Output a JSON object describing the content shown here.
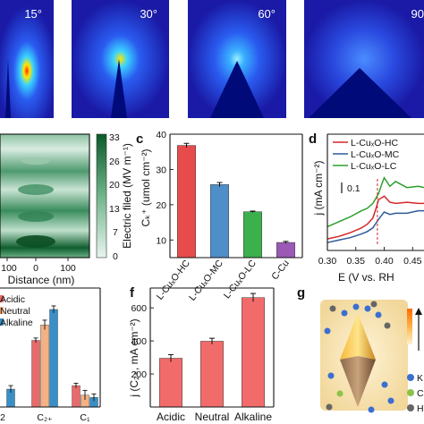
{
  "panel_a": {
    "angles": [
      "15°",
      "30°",
      "60°",
      "90"
    ],
    "colors": {
      "field_bg": "#1a1aa6",
      "tip": "#000a78",
      "hot": "#ffe600"
    }
  },
  "panel_b": {
    "xlabel": "Distance (nm)",
    "xticks": [
      "100",
      "0",
      "100"
    ],
    "colorbar_label": "Electric filed (MV m⁻¹)",
    "colorbar_ticks": [
      "33",
      "26",
      "20",
      "13",
      "7",
      "0"
    ],
    "colors": {
      "high": "#0a5a28",
      "low": "#e8f4ef"
    }
  },
  "panel_c": {
    "label": "c",
    "ylabel": "Cₖ⁺ (umol cm⁻²)",
    "yticks": [
      "10",
      "20",
      "30",
      "40"
    ],
    "ylim": [
      5,
      40
    ]
  },
  "panel_d": {
    "label": "d",
    "legend": [
      "L-CuₓO-HC",
      "L-CuₓO-MC",
      "L-CuₓO-LC"
    ],
    "ylabel": "j (mA cm⁻²)",
    "xlabel": "E (V vs. RH",
    "xticks": [
      "0.30",
      "0.35",
      "0.40",
      "0.45"
    ],
    "scalebar": "0.1",
    "colors": [
      "#d62728",
      "#2e5a99",
      "#2ca02c"
    ]
  },
  "panel_e": {
    "legend": [
      "Acidic",
      "Neutral",
      "Alkaline"
    ],
    "categories": [
      "2",
      "C₂₊",
      "C₁"
    ],
    "colors": [
      "#e86b6b",
      "#f4b183",
      "#3a8fc7"
    ]
  },
  "panel_f": {
    "label": "f",
    "ylabel": "j (C₂₊, mA cm⁻²)",
    "yticks": [
      "200",
      "400",
      "600"
    ],
    "ylim": [
      0,
      720
    ]
  },
  "panel_g": {
    "label": "g",
    "legend_letters": [
      "K",
      "C",
      "H"
    ],
    "colors": [
      "#3b6fd1",
      "#8bc34a",
      "#666666"
    ]
  },
  "chart_data": [
    {
      "type": "bar",
      "panel": "c",
      "categories": [
        "L-CuₓO-HC",
        "L-CuₓO-MC",
        "L-CuₓO-LC",
        "C-Cu"
      ],
      "values": [
        36.8,
        25.7,
        18.0,
        9.3
      ],
      "errors": [
        0.6,
        0.6,
        0.2,
        0.3
      ],
      "colors": [
        "#e84b4b",
        "#4f8fc9",
        "#3cb04c",
        "#9b59b6"
      ],
      "ylabel": "Cₖ⁺ (umol cm⁻²)",
      "ylim": [
        5,
        40
      ]
    },
    {
      "type": "bar",
      "panel": "f",
      "categories": [
        "Acidic",
        "Neutral",
        "Alkaline"
      ],
      "values": [
        295,
        398,
        662
      ],
      "errors": [
        22,
        18,
        25
      ],
      "colors": [
        "#f26b6b",
        "#f26b6b",
        "#f26b6b"
      ],
      "ylabel": "j (C₂₊, mA cm⁻²)",
      "ylim": [
        0,
        720
      ]
    },
    {
      "type": "bar",
      "panel": "e",
      "categories": [
        "2",
        "C₂₊",
        "C₁"
      ],
      "series": [
        {
          "name": "Acidic",
          "values": [
            0.16,
            0.56,
            0.18
          ]
        },
        {
          "name": "Neutral",
          "values": [
            0.0,
            0.69,
            0.1
          ]
        },
        {
          "name": "Alkaline",
          "values": [
            0.15,
            0.82,
            0.08
          ]
        }
      ],
      "errors": [
        0.02,
        0.04,
        0.03
      ],
      "ylim": [
        0,
        1.0
      ]
    },
    {
      "type": "line",
      "panel": "d",
      "xlim": [
        0.3,
        0.47
      ],
      "series": [
        {
          "name": "L-CuₓO-HC",
          "x": [
            0.3,
            0.32,
            0.34,
            0.36,
            0.37,
            0.38,
            0.385,
            0.39,
            0.4,
            0.41,
            0.42,
            0.44,
            0.46,
            0.47
          ],
          "y": [
            0.08,
            0.1,
            0.13,
            0.17,
            0.2,
            0.25,
            0.32,
            0.4,
            0.43,
            0.38,
            0.37,
            0.38,
            0.37,
            0.37
          ]
        },
        {
          "name": "L-CuₓO-MC",
          "x": [
            0.3,
            0.32,
            0.34,
            0.36,
            0.37,
            0.38,
            0.39,
            0.4,
            0.41,
            0.42,
            0.44,
            0.46,
            0.47
          ],
          "y": [
            0.05,
            0.07,
            0.09,
            0.12,
            0.14,
            0.17,
            0.24,
            0.3,
            0.28,
            0.29,
            0.29,
            0.31,
            0.31
          ]
        },
        {
          "name": "L-CuₓO-LC",
          "x": [
            0.3,
            0.32,
            0.34,
            0.36,
            0.37,
            0.38,
            0.39,
            0.395,
            0.4,
            0.41,
            0.42,
            0.44,
            0.46,
            0.47
          ],
          "y": [
            0.18,
            0.22,
            0.26,
            0.31,
            0.33,
            0.37,
            0.45,
            0.52,
            0.58,
            0.51,
            0.55,
            0.5,
            0.51,
            0.5
          ]
        }
      ],
      "vline": 0.388
    }
  ]
}
